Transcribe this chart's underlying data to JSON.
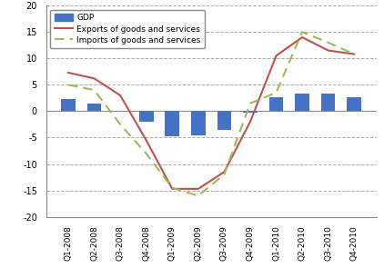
{
  "categories": [
    "Q1-2008",
    "Q2-2008",
    "Q3-2008",
    "Q4-2008",
    "Q1-2009",
    "Q2-2009",
    "Q3-2009",
    "Q4-2009",
    "Q1-2010",
    "Q2-2010",
    "Q3-2010",
    "Q4-2010"
  ],
  "gdp": [
    2.3,
    1.5,
    0.0,
    -2.0,
    -4.8,
    -4.5,
    -3.5,
    -0.2,
    2.7,
    3.3,
    3.3,
    2.7
  ],
  "exports": [
    7.3,
    6.2,
    3.0,
    -5.5,
    -14.7,
    -14.7,
    -11.5,
    -2.0,
    10.5,
    14.0,
    11.5,
    10.8
  ],
  "imports": [
    5.0,
    4.0,
    -2.5,
    -8.0,
    -14.5,
    -16.0,
    -12.0,
    1.5,
    3.5,
    15.0,
    13.0,
    10.8
  ],
  "gdp_color": "#4472C4",
  "exports_color": "#C0504D",
  "imports_color": "#9BBB59",
  "ylim": [
    -20,
    20
  ],
  "yticks": [
    -20,
    -15,
    -10,
    -5,
    0,
    5,
    10,
    15,
    20
  ],
  "grid_color": "#AAAAAA",
  "background_color": "#FFFFFF",
  "legend_gdp": "GDP",
  "legend_exports": "Exports of goods and services",
  "legend_imports": "Imports of goods and services"
}
